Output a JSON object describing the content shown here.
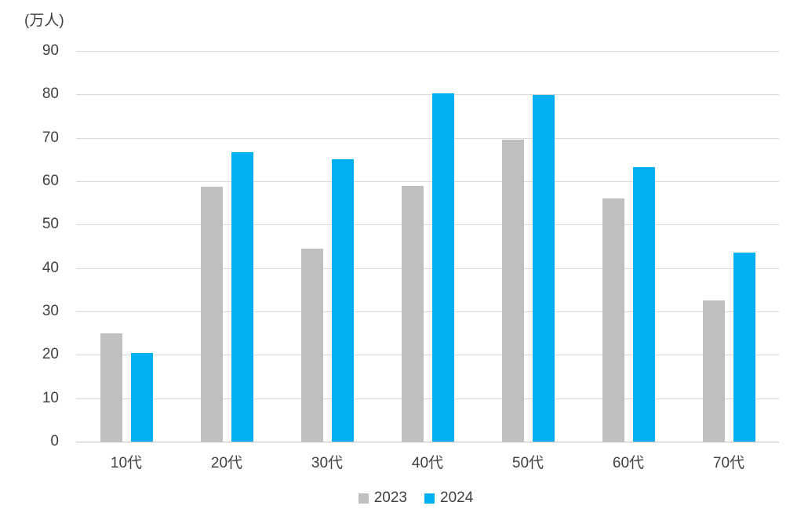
{
  "chart_data": {
    "type": "bar",
    "title": "",
    "unit_label": "(万人)",
    "categories": [
      "10代",
      "20代",
      "30代",
      "40代",
      "50代",
      "60代",
      "70代"
    ],
    "series": [
      {
        "name": "2023",
        "color": "#bfbfbf",
        "values": [
          25.0,
          58.8,
          44.5,
          59.0,
          69.5,
          56.0,
          32.5
        ]
      },
      {
        "name": "2024",
        "color": "#00b0f0",
        "values": [
          20.4,
          66.7,
          65.0,
          80.3,
          79.8,
          63.3,
          43.5
        ]
      }
    ],
    "xlabel": "",
    "ylabel": "",
    "ylim": [
      0,
      90
    ],
    "ytick_interval": 10,
    "ytick_labels": [
      "0",
      "10",
      "20",
      "30",
      "40",
      "50",
      "60",
      "70",
      "80",
      "90"
    ],
    "grid": true,
    "legend_position": "bottom"
  },
  "colors": {
    "series_2023": "#bfbfbf",
    "series_2024": "#00b0f0",
    "gridline": "#d9d9d9",
    "axis_line": "#bfbfbf",
    "text": "#404040",
    "background": "#ffffff"
  }
}
